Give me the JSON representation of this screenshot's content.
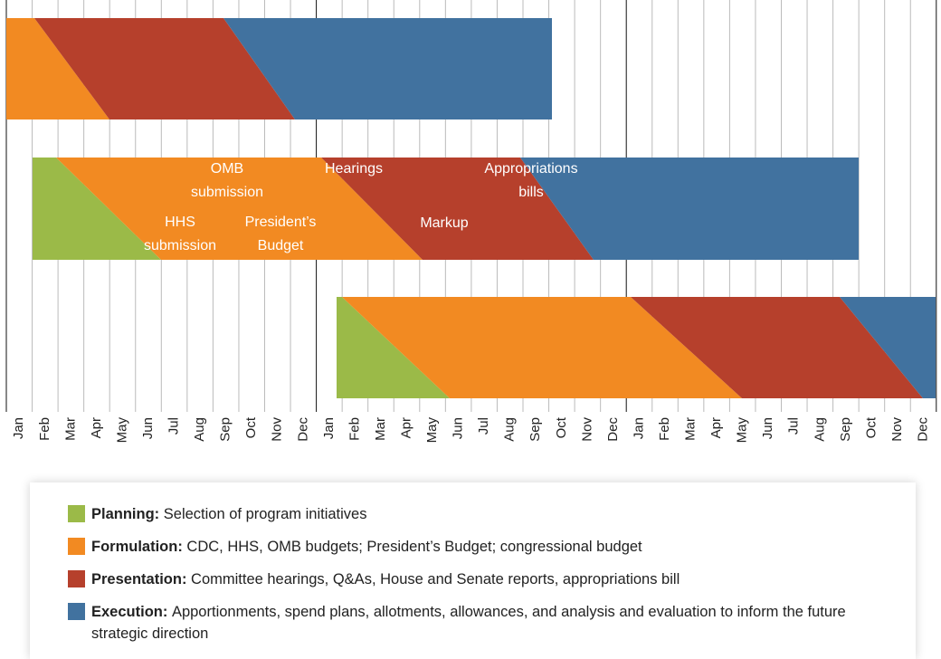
{
  "months": [
    "Jan",
    "Feb",
    "Mar",
    "Apr",
    "May",
    "Jun",
    "Jul",
    "Aug",
    "Sep",
    "Oct",
    "Nov",
    "Dec",
    "Jan",
    "Feb",
    "Mar",
    "Apr",
    "May",
    "Jun",
    "Jul",
    "Aug",
    "Sep",
    "Oct",
    "Nov",
    "Dec",
    "Jan",
    "Feb",
    "Mar",
    "Apr",
    "May",
    "Jun",
    "Jul",
    "Aug",
    "Sep",
    "Oct",
    "Nov",
    "Dec"
  ],
  "annotations": [
    {
      "lines": [
        "OMB",
        "submission"
      ]
    },
    {
      "lines": [
        "HHS",
        "submission"
      ]
    },
    {
      "lines": [
        "President’s",
        "Budget"
      ]
    },
    {
      "lines": [
        "Hearings"
      ]
    },
    {
      "lines": [
        "Appropriations",
        "bills"
      ]
    },
    {
      "lines": [
        "Markup"
      ]
    }
  ],
  "legend": [
    {
      "label": "Planning:",
      "description": "Selection of program initiatives",
      "color": "#9bba48"
    },
    {
      "label": "Formulation:",
      "description": "CDC, HHS, OMB budgets; President’s Budget; congressional budget",
      "color": "#f28a22"
    },
    {
      "label": "Presentation:",
      "description": "Committee hearings, Q&As, House and Senate reports, appropriations bill",
      "color": "#b6402c"
    },
    {
      "label": "Execution:",
      "description": "Apportionments, spend plans, allotments, allowances, and analysis and evaluation to inform the future strategic direction",
      "color": "#41729f"
    }
  ]
}
